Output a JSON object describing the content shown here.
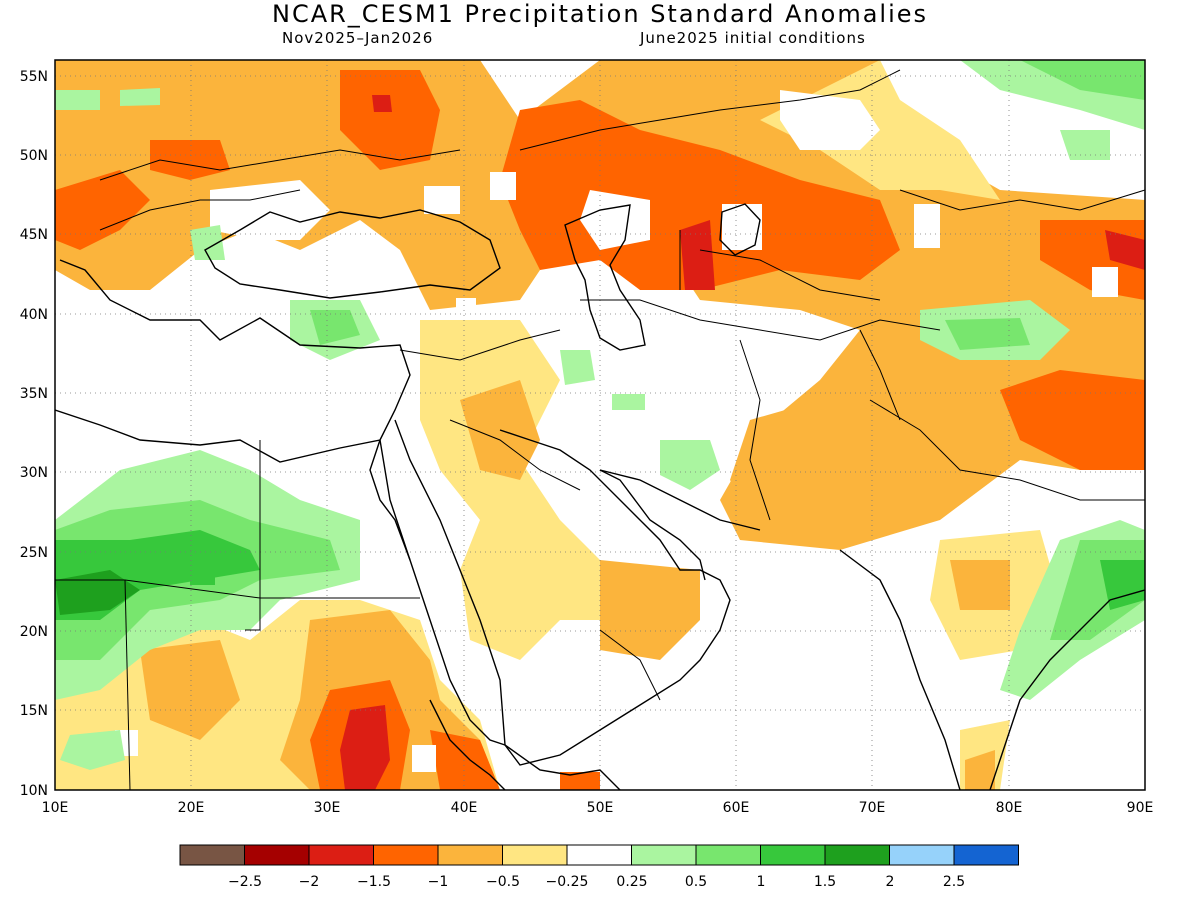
{
  "title": "NCAR_CESM1 Precipitation Standard Anomalies",
  "period": "Nov2025–Jan2026",
  "init": "June2025 initial conditions",
  "axes": {
    "lat_labels": [
      "55N",
      "50N",
      "45N",
      "40N",
      "35N",
      "30N",
      "25N",
      "20N",
      "15N",
      "10N"
    ],
    "lon_labels": [
      "10E",
      "20E",
      "30E",
      "40E",
      "50E",
      "60E",
      "70E",
      "80E",
      "90E"
    ],
    "lon_range": [
      10,
      90
    ],
    "lat_range": [
      10,
      56
    ],
    "grid": "dotted"
  },
  "legend": {
    "colors": [
      "#785544",
      "#a50000",
      "#dc1e14",
      "#ff6400",
      "#fbb43c",
      "#ffe682",
      "#ffffff",
      "#aaf5a0",
      "#78e66e",
      "#37c83c",
      "#1ea01e",
      "#96d2fa",
      "#1464d2"
    ],
    "labels": [
      "−2.5",
      "−2",
      "−1.5",
      "−1",
      "−0.5",
      "−0.25",
      "0.25",
      "0.5",
      "1",
      "1.5",
      "2",
      "2.5"
    ]
  }
}
